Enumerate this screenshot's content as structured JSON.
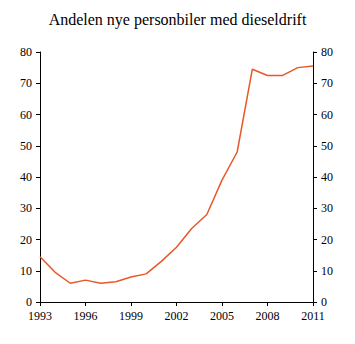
{
  "chart_data": {
    "type": "line",
    "title": "Andelen nye personbiler med dieseldrift",
    "x": [
      1993,
      1994,
      1995,
      1996,
      1997,
      1998,
      1999,
      2000,
      2001,
      2002,
      2003,
      2004,
      2005,
      2006,
      2007,
      2008,
      2009,
      2010,
      2011
    ],
    "values": [
      14.5,
      9.5,
      6,
      7,
      6,
      6.5,
      8,
      9,
      13,
      17.5,
      23.5,
      28,
      39,
      48,
      74.5,
      72.5,
      72.5,
      75,
      75.5
    ],
    "color": "#e8572a",
    "xlim": [
      1993,
      2011
    ],
    "xticks": [
      1993,
      1996,
      1999,
      2002,
      2005,
      2008,
      2011
    ],
    "ylim": [
      0,
      80
    ],
    "yticks": [
      0,
      10,
      20,
      30,
      40,
      50,
      60,
      70,
      80
    ],
    "y2lim": [
      0,
      80
    ],
    "y2ticks": [
      0,
      10,
      20,
      30,
      40,
      50,
      60,
      70,
      80
    ],
    "grid": false
  }
}
